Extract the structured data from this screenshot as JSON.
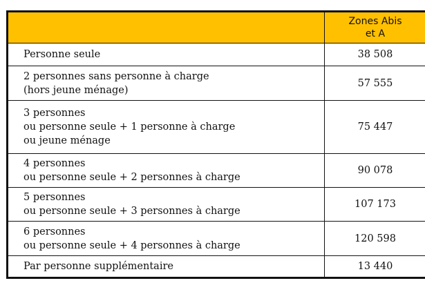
{
  "table": {
    "header": {
      "label": "",
      "value_line1": "Zones Abis",
      "value_line2": "et A"
    },
    "header_color": "#FFC000",
    "rows": [
      {
        "lines": [
          "Personne seule"
        ],
        "value": "38 508"
      },
      {
        "lines": [
          "2 personnes sans personne à charge",
          "(hors jeune ménage)"
        ],
        "value": "57 555"
      },
      {
        "lines": [
          "3 personnes",
          "ou personne seule + 1 personne à charge",
          "ou jeune ménage"
        ],
        "value": "75 447"
      },
      {
        "lines": [
          "4 personnes",
          "ou personne seule + 2 personnes à charge"
        ],
        "value": "90 078"
      },
      {
        "lines": [
          "5 personnes",
          "ou personne seule + 3 personnes à charge"
        ],
        "value": "107 173"
      },
      {
        "lines": [
          "6 personnes",
          "ou personne seule + 4 personnes à charge"
        ],
        "value": "120 598"
      },
      {
        "lines": [
          "Par personne supplémentaire"
        ],
        "value": "13 440"
      }
    ]
  }
}
